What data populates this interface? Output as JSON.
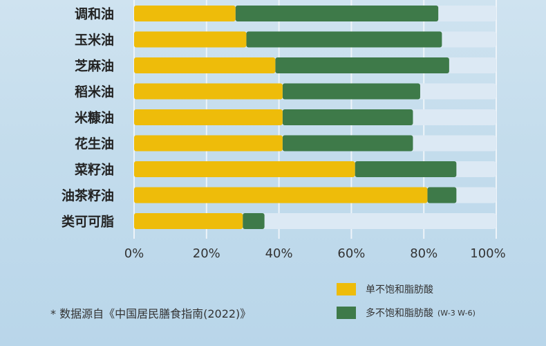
{
  "chart_data": {
    "type": "bar",
    "orientation": "horizontal",
    "stacked": true,
    "categories": [
      "调和油",
      "玉米油",
      "芝麻油",
      "稻米油",
      "米糠油",
      "花生油",
      "菜籽油",
      "油茶籽油",
      "类可可脂"
    ],
    "series": [
      {
        "name": "单不饱和脂肪酸",
        "values": [
          28,
          31,
          39,
          41,
          41,
          41,
          61,
          81,
          30
        ]
      },
      {
        "name": "多不饱和脂肪酸",
        "name_suffix": "(W-3 W-6)",
        "values": [
          56,
          54,
          48,
          38,
          36,
          36,
          28,
          8,
          6
        ]
      }
    ],
    "xlim": [
      0,
      100
    ],
    "xticks": [
      "0%",
      "20%",
      "40%",
      "60%",
      "80%",
      "100%"
    ],
    "grid": true,
    "legend_position": "bottom-right",
    "colors": {
      "mono": "#eebc0a",
      "poly": "#3e7a49",
      "track": "#dce9f4",
      "grid": "#eef4f9"
    }
  },
  "footnote": "* 数据源自《中国居民膳食指南(2022)》"
}
